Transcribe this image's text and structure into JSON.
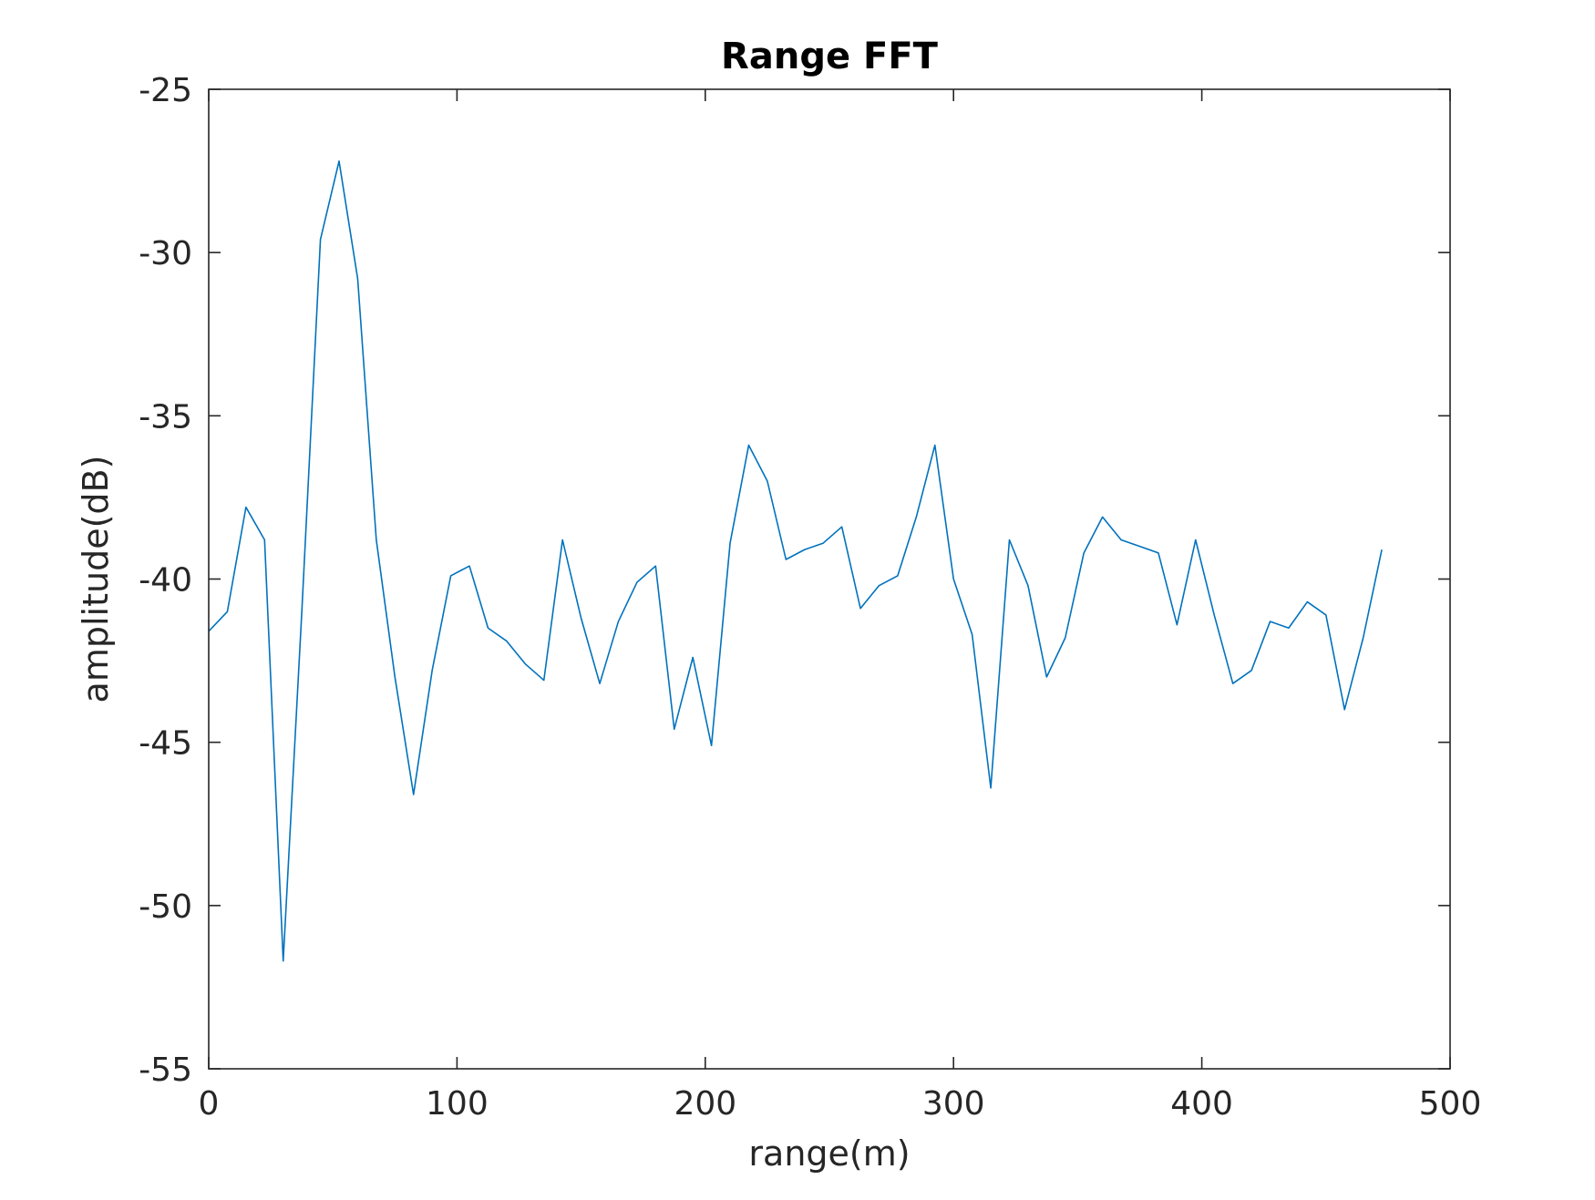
{
  "chart_data": {
    "type": "line",
    "title": "Range FFT",
    "xlabel": "range(m)",
    "ylabel": "amplitude(dB)",
    "xlim": [
      0,
      500
    ],
    "ylim": [
      -55,
      -25
    ],
    "xticks": [
      0,
      100,
      200,
      300,
      400,
      500
    ],
    "yticks": [
      -55,
      -50,
      -45,
      -40,
      -35,
      -30,
      -25
    ],
    "xtick_labels": [
      "0",
      "100",
      "200",
      "300",
      "400",
      "500"
    ],
    "ytick_labels": [
      "-55",
      "-50",
      "-45",
      "-40",
      "-35",
      "-30",
      "-25"
    ],
    "grid": false,
    "line_color": "#0072BD",
    "series": [
      {
        "x": [
          0,
          7.5,
          15,
          22.5,
          30,
          37.5,
          45,
          52.5,
          60,
          67.5,
          75,
          82.5,
          90,
          97.5,
          105,
          112.5,
          120,
          127.5,
          135,
          142.5,
          150,
          157.5,
          165,
          172.5,
          180,
          187.5,
          195,
          202.5,
          210,
          217.5,
          225,
          232.5,
          240,
          247.5,
          255,
          262.5,
          270,
          277.5,
          285,
          292.5,
          300,
          307.5,
          315,
          322.5,
          330,
          337.5,
          345,
          352.5,
          360,
          367.5,
          375,
          382.5,
          390,
          397.5,
          405,
          412.5,
          420,
          427.5,
          435,
          442.5,
          450,
          457.5,
          465,
          472.5
        ],
        "values": [
          -41.6,
          -41.0,
          -37.8,
          -38.8,
          -51.7,
          -41.0,
          -29.6,
          -27.2,
          -30.8,
          -38.8,
          -43.0,
          -46.6,
          -42.8,
          -39.9,
          -39.6,
          -41.5,
          -41.9,
          -42.6,
          -43.1,
          -38.8,
          -41.2,
          -43.2,
          -41.3,
          -40.1,
          -39.6,
          -44.6,
          -42.4,
          -45.1,
          -38.9,
          -35.9,
          -37.0,
          -39.4,
          -39.1,
          -38.9,
          -38.4,
          -40.9,
          -40.2,
          -39.9,
          -38.1,
          -35.9,
          -40.0,
          -41.7,
          -46.4,
          -38.8,
          -40.2,
          -43.0,
          -41.8,
          -39.2,
          -38.1,
          -38.8,
          -39.0,
          -39.2,
          -41.4,
          -38.8,
          -41.1,
          -43.2,
          -42.8,
          -41.3,
          -41.5,
          -40.7,
          -41.1,
          -44.0,
          -41.8,
          -39.1
        ]
      }
    ]
  }
}
